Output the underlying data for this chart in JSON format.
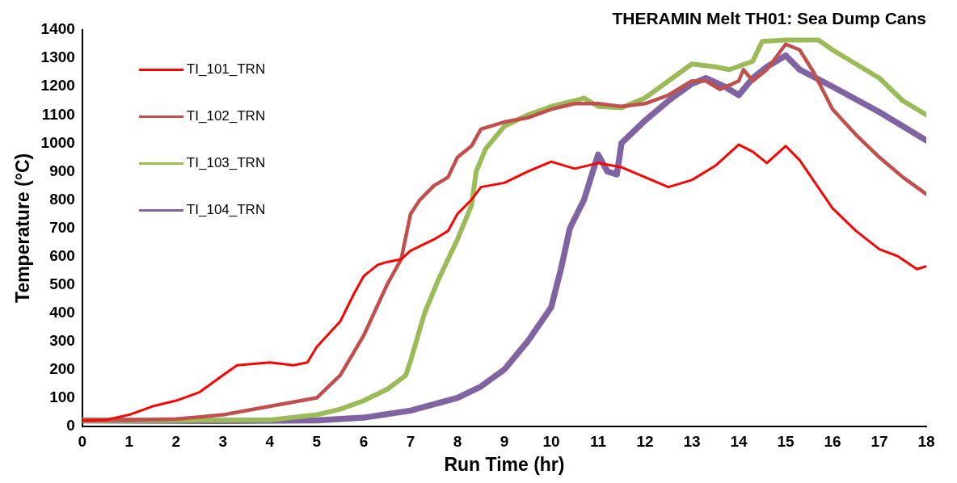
{
  "chart_data": {
    "type": "line",
    "title": "THERAMIN Melt TH01: Sea Dump Cans",
    "xlabel": "Run Time (hr)",
    "ylabel": "Temperature (°C)",
    "xlim": [
      0,
      18
    ],
    "xticks": [
      0,
      1,
      2,
      3,
      4,
      5,
      6,
      7,
      8,
      9,
      10,
      11,
      12,
      13,
      14,
      15,
      16,
      17,
      18
    ],
    "ylim": [
      0,
      1400
    ],
    "yticks": [
      0,
      100,
      200,
      300,
      400,
      500,
      600,
      700,
      800,
      900,
      1000,
      1100,
      1200,
      1300,
      1400
    ],
    "grid": false,
    "legend": "top left",
    "marker": "none",
    "line_style": "solid",
    "series": [
      {
        "name": "TI_101_TRN",
        "color": "#ff0000",
        "x": [
          0,
          0.5,
          1,
          1.5,
          2,
          2.5,
          3,
          3.3,
          4,
          4.5,
          4.8,
          5,
          5.5,
          5.8,
          6,
          6.3,
          6.5,
          6.8,
          7,
          7.5,
          7.8,
          8,
          8.3,
          8.5,
          9,
          9.5,
          10,
          10.5,
          11,
          11.5,
          12,
          12.5,
          13,
          13.5,
          14,
          14.3,
          14.6,
          15,
          15.3,
          16,
          16.5,
          17,
          17.4,
          17.8,
          18
        ],
        "values": [
          20,
          22,
          40,
          70,
          90,
          120,
          180,
          215,
          225,
          215,
          225,
          280,
          370,
          470,
          530,
          570,
          580,
          590,
          620,
          660,
          690,
          750,
          800,
          845,
          860,
          900,
          935,
          910,
          930,
          915,
          880,
          845,
          870,
          920,
          995,
          970,
          930,
          990,
          940,
          770,
          690,
          625,
          600,
          555,
          565
        ]
      },
      {
        "name": "TI_102_TRN",
        "color": "#c0504d",
        "x": [
          0,
          1,
          2,
          3,
          4,
          4.5,
          5,
          5.5,
          6,
          6.5,
          6.8,
          7,
          7.2,
          7.5,
          7.8,
          8,
          8.3,
          8.5,
          9,
          9.5,
          10,
          10.5,
          11,
          11.5,
          12,
          12.5,
          13,
          13.3,
          13.6,
          14,
          14.1,
          14.3,
          14.6,
          15,
          15.3,
          15.6,
          16,
          16.5,
          17,
          17.5,
          18
        ],
        "values": [
          20,
          22,
          25,
          40,
          70,
          85,
          100,
          180,
          320,
          500,
          590,
          750,
          800,
          850,
          880,
          950,
          990,
          1050,
          1075,
          1090,
          1120,
          1140,
          1140,
          1130,
          1140,
          1170,
          1220,
          1220,
          1190,
          1220,
          1260,
          1220,
          1260,
          1350,
          1330,
          1250,
          1120,
          1030,
          950,
          880,
          820
        ]
      },
      {
        "name": "TI_103_TRN",
        "color": "#9bbb59",
        "x": [
          0,
          2,
          4,
          5,
          5.5,
          6,
          6.5,
          6.9,
          7,
          7.3,
          7.6,
          8,
          8.3,
          8.4,
          8.6,
          9,
          9.5,
          10,
          10.5,
          10.7,
          11,
          11.5,
          12,
          12.5,
          13,
          13.5,
          13.8,
          14.3,
          14.5,
          15,
          15.7,
          16,
          16.5,
          17,
          17.5,
          18
        ],
        "values": [
          20,
          20,
          22,
          40,
          60,
          90,
          130,
          180,
          230,
          400,
          520,
          660,
          780,
          900,
          980,
          1060,
          1100,
          1130,
          1150,
          1160,
          1130,
          1125,
          1160,
          1220,
          1280,
          1270,
          1260,
          1290,
          1360,
          1365,
          1365,
          1330,
          1280,
          1230,
          1150,
          1100
        ]
      },
      {
        "name": "TI_104_TRN",
        "color": "#8064a2",
        "x": [
          0,
          3,
          5,
          6,
          7,
          8,
          8.5,
          9,
          9.5,
          10,
          10.2,
          10.4,
          10.7,
          11,
          11.2,
          11.4,
          11.5,
          12,
          12.5,
          13,
          13.3,
          13.7,
          14,
          14.3,
          14.6,
          15,
          15.3,
          16,
          17,
          18
        ],
        "values": [
          20,
          18,
          20,
          30,
          55,
          100,
          140,
          200,
          300,
          420,
          550,
          700,
          800,
          960,
          900,
          890,
          1000,
          1080,
          1150,
          1210,
          1230,
          1200,
          1170,
          1230,
          1270,
          1310,
          1260,
          1200,
          1110,
          1010
        ]
      }
    ]
  }
}
